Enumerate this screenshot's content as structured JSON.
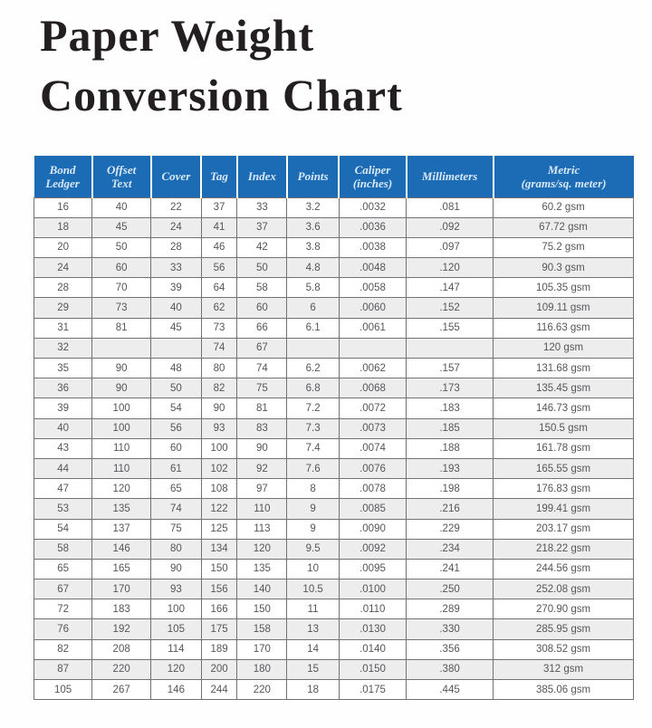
{
  "title": {
    "line1": "Paper Weight",
    "line2": "Conversion Chart",
    "color": "#231f20"
  },
  "colors": {
    "header_background": "#1b6cb4",
    "header_text": "#d9e8f6",
    "row_stripe": "#ededed",
    "grid_line": "#717275",
    "cell_text": "#55565a",
    "page_background": "#fefefe"
  },
  "table": {
    "columns": [
      {
        "label": "Bond\nLedger",
        "width": "9.7%"
      },
      {
        "label": "Offset\nText",
        "width": "9.8%"
      },
      {
        "label": "Cover",
        "width": "8.4%"
      },
      {
        "label": "Tag",
        "width": "6.0%"
      },
      {
        "label": "Index",
        "width": "8.3%"
      },
      {
        "label": "Points",
        "width": "8.7%"
      },
      {
        "label": "Caliper\n(inches)",
        "width": "11.2%"
      },
      {
        "label": "Millimeters",
        "width": "14.5%"
      },
      {
        "label": "Metric\n(grams/sq. meter)",
        "width": "23.4%"
      }
    ],
    "rows": [
      [
        "16",
        "40",
        "22",
        "37",
        "33",
        "3.2",
        ".0032",
        ".081",
        "60.2 gsm"
      ],
      [
        "18",
        "45",
        "24",
        "41",
        "37",
        "3.6",
        ".0036",
        ".092",
        "67.72 gsm"
      ],
      [
        "20",
        "50",
        "28",
        "46",
        "42",
        "3.8",
        ".0038",
        ".097",
        "75.2 gsm"
      ],
      [
        "24",
        "60",
        "33",
        "56",
        "50",
        "4.8",
        ".0048",
        ".120",
        "90.3 gsm"
      ],
      [
        "28",
        "70",
        "39",
        "64",
        "58",
        "5.8",
        ".0058",
        ".147",
        "105.35 gsm"
      ],
      [
        "29",
        "73",
        "40",
        "62",
        "60",
        "6",
        ".0060",
        ".152",
        "109.11 gsm"
      ],
      [
        "31",
        "81",
        "45",
        "73",
        "66",
        "6.1",
        ".0061",
        ".155",
        "116.63 gsm"
      ],
      [
        "32",
        "",
        "",
        "74",
        "67",
        "",
        "",
        "",
        "120 gsm"
      ],
      [
        "35",
        "90",
        "48",
        "80",
        "74",
        "6.2",
        ".0062",
        ".157",
        "131.68 gsm"
      ],
      [
        "36",
        "90",
        "50",
        "82",
        "75",
        "6.8",
        ".0068",
        ".173",
        "135.45 gsm"
      ],
      [
        "39",
        "100",
        "54",
        "90",
        "81",
        "7.2",
        ".0072",
        ".183",
        "146.73 gsm"
      ],
      [
        "40",
        "100",
        "56",
        "93",
        "83",
        "7.3",
        ".0073",
        ".185",
        "150.5 gsm"
      ],
      [
        "43",
        "110",
        "60",
        "100",
        "90",
        "7.4",
        ".0074",
        ".188",
        "161.78 gsm"
      ],
      [
        "44",
        "110",
        "61",
        "102",
        "92",
        "7.6",
        ".0076",
        ".193",
        "165.55 gsm"
      ],
      [
        "47",
        "120",
        "65",
        "108",
        "97",
        "8",
        ".0078",
        ".198",
        "176.83 gsm"
      ],
      [
        "53",
        "135",
        "74",
        "122",
        "110",
        "9",
        ".0085",
        ".216",
        "199.41 gsm"
      ],
      [
        "54",
        "137",
        "75",
        "125",
        "113",
        "9",
        ".0090",
        ".229",
        "203.17 gsm"
      ],
      [
        "58",
        "146",
        "80",
        "134",
        "120",
        "9.5",
        ".0092",
        ".234",
        "218.22 gsm"
      ],
      [
        "65",
        "165",
        "90",
        "150",
        "135",
        "10",
        ".0095",
        ".241",
        "244.56 gsm"
      ],
      [
        "67",
        "170",
        "93",
        "156",
        "140",
        "10.5",
        ".0100",
        ".250",
        "252.08 gsm"
      ],
      [
        "72",
        "183",
        "100",
        "166",
        "150",
        "11",
        ".0110",
        ".289",
        "270.90 gsm"
      ],
      [
        "76",
        "192",
        "105",
        "175",
        "158",
        "13",
        ".0130",
        ".330",
        "285.95 gsm"
      ],
      [
        "82",
        "208",
        "114",
        "189",
        "170",
        "14",
        ".0140",
        ".356",
        "308.52 gsm"
      ],
      [
        "87",
        "220",
        "120",
        "200",
        "180",
        "15",
        ".0150",
        ".380",
        "312 gsm"
      ],
      [
        "105",
        "267",
        "146",
        "244",
        "220",
        "18",
        ".0175",
        ".445",
        "385.06 gsm"
      ]
    ]
  }
}
